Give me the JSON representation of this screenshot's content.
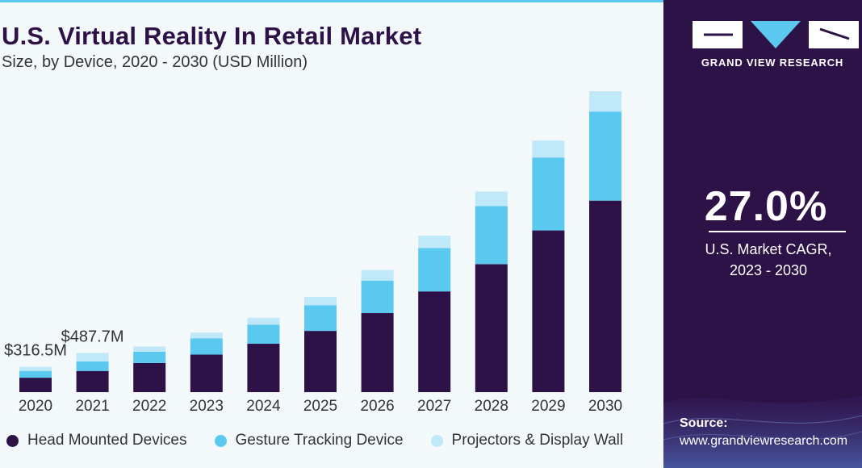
{
  "header": {
    "title": "U.S. Virtual Reality In Retail Market",
    "subtitle": "Size, by Device, 2020 - 2030 (USD Million)"
  },
  "side_panel": {
    "brand": "GRAND VIEW RESEARCH",
    "cagr_value": "27.0%",
    "cagr_label_line1": "U.S. Market CAGR,",
    "cagr_label_line2": "2023 - 2030",
    "source_label": "Source:",
    "source_url": "www.grandviewresearch.com"
  },
  "colors": {
    "panel_bg": "#2d1248",
    "head_mounted": "#2d1248",
    "gesture_tracking": "#5bc9ef",
    "projectors": "#bfe8f9",
    "accent_top": "#5bc9ef"
  },
  "chart_data": {
    "type": "bar",
    "stacked": true,
    "title": "U.S. Virtual Reality In Retail Market",
    "subtitle": "Size, by Device, 2020 - 2030 (USD Million)",
    "categories": [
      "2020",
      "2021",
      "2022",
      "2023",
      "2024",
      "2025",
      "2026",
      "2027",
      "2028",
      "2029",
      "2030"
    ],
    "series": [
      {
        "name": "Head Mounted Devices",
        "color": "#2d1248",
        "values": [
          180,
          264,
          363,
          468,
          603,
          763,
          985,
          1255,
          1595,
          2015,
          2386
        ]
      },
      {
        "name": "Gesture Tracking Device",
        "color": "#5bc9ef",
        "values": [
          85,
          118,
          140,
          203,
          238,
          320,
          405,
          540,
          724,
          908,
          1110
        ]
      },
      {
        "name": "Projectors & Display Wall",
        "color": "#bfe8f9",
        "values": [
          51,
          106,
          65,
          70,
          85,
          103,
          132,
          154,
          179,
          212,
          254
        ]
      }
    ],
    "totals": [
      316.5,
      487.7,
      null,
      null,
      null,
      null,
      null,
      null,
      null,
      null,
      null
    ],
    "annotations": [
      {
        "category": "2020",
        "text": "$316.5M"
      },
      {
        "category": "2021",
        "text": "$487.7M"
      }
    ],
    "ylim": [
      0,
      3800
    ],
    "grid": false,
    "legend_position": "bottom"
  }
}
